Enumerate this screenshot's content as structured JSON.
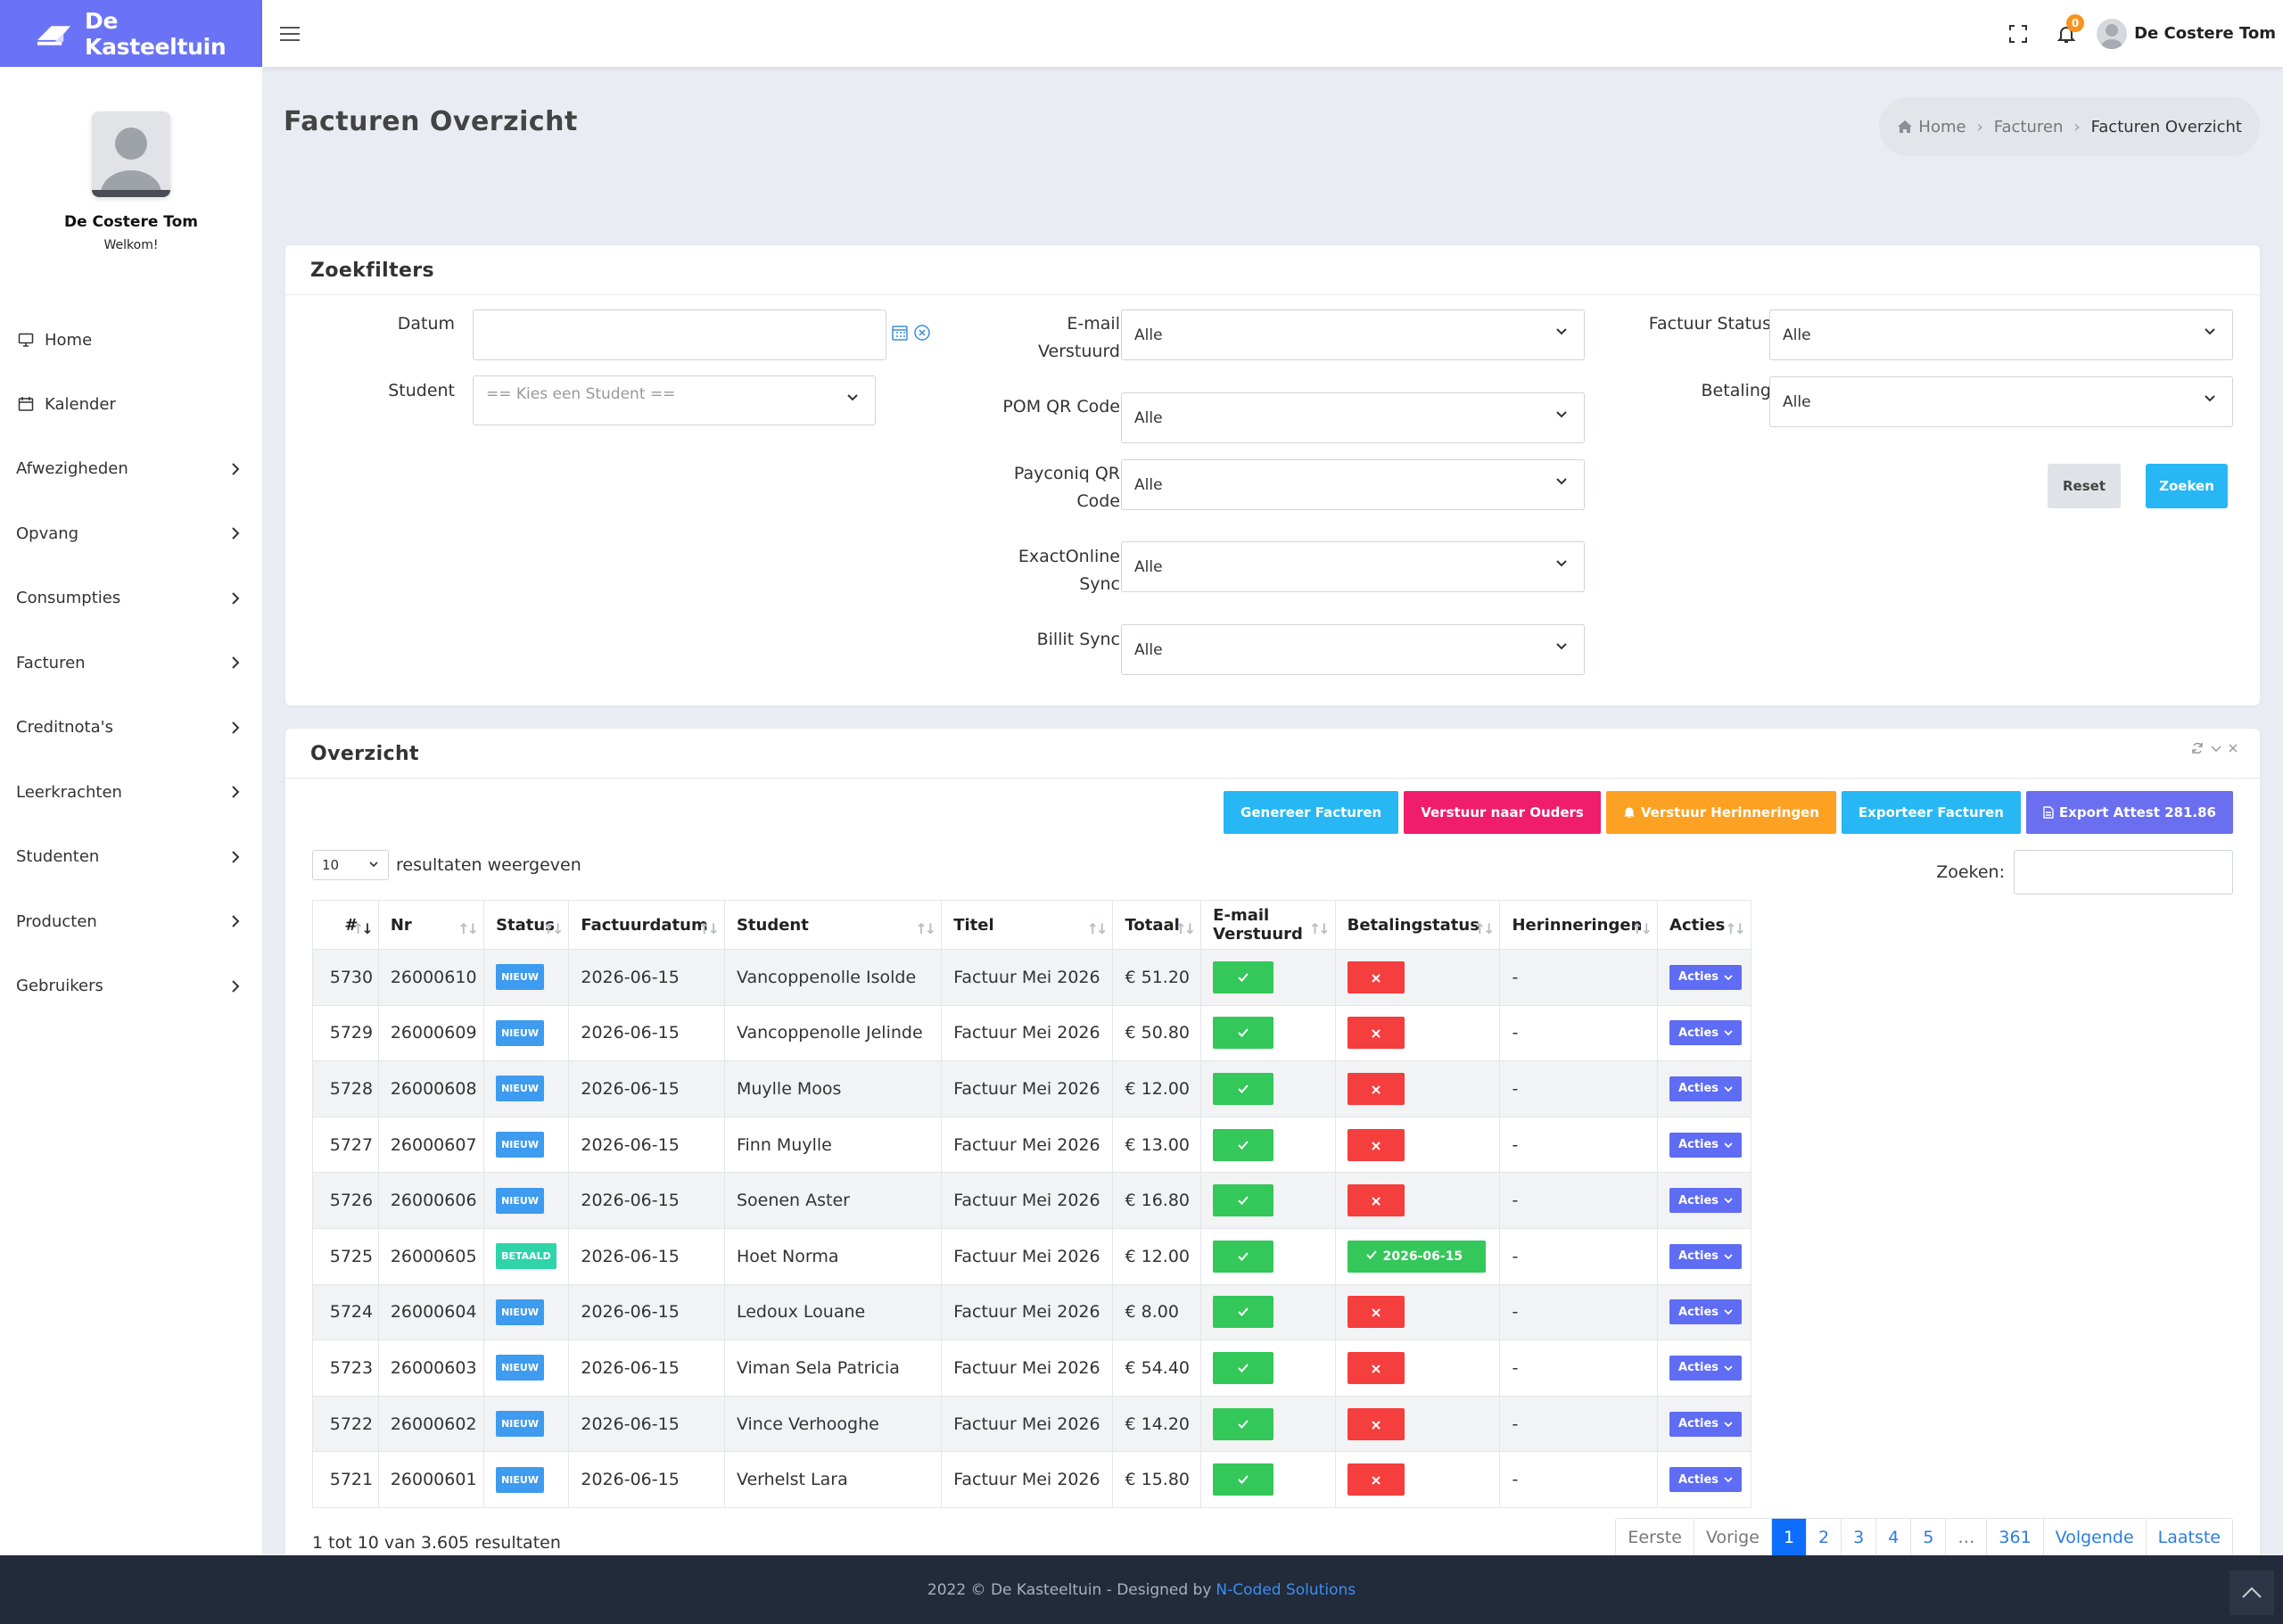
{
  "app": {
    "brand": "De Kasteeltuin",
    "notification_count": "0"
  },
  "user": {
    "name": "De Costere Tom",
    "welcome": "Welkom!"
  },
  "sidebar": {
    "items": [
      {
        "label": "Home",
        "icon": "monitor-icon",
        "has_submenu": false
      },
      {
        "label": "Kalender",
        "icon": "calendar-icon",
        "has_submenu": false
      },
      {
        "label": "Afwezigheden",
        "has_submenu": true
      },
      {
        "label": "Opvang",
        "has_submenu": true
      },
      {
        "label": "Consumpties",
        "has_submenu": true
      },
      {
        "label": "Facturen",
        "has_submenu": true
      },
      {
        "label": "Creditnota's",
        "has_submenu": true
      },
      {
        "label": "Leerkrachten",
        "has_submenu": true
      },
      {
        "label": "Studenten",
        "has_submenu": true
      },
      {
        "label": "Producten",
        "has_submenu": true
      },
      {
        "label": "Gebruikers",
        "has_submenu": true
      }
    ]
  },
  "page": {
    "title": "Facturen Overzicht",
    "breadcrumb": [
      "Home",
      "Facturen",
      "Facturen Overzicht"
    ]
  },
  "filters": {
    "title": "Zoekfilters",
    "datum": {
      "label": "Datum",
      "value": ""
    },
    "student": {
      "label": "Student",
      "placeholder": "== Kies een Student =="
    },
    "email_verstuurd": {
      "label_1": "E-mail",
      "label_2": "Verstuurd",
      "value": "Alle"
    },
    "pom_qr": {
      "label": "POM QR Code",
      "value": "Alle"
    },
    "payconiq": {
      "label_1": "Payconiq QR",
      "label_2": "Code",
      "value": "Alle"
    },
    "exactonline": {
      "label_1": "ExactOnline",
      "label_2": "Sync",
      "value": "Alle"
    },
    "billit": {
      "label": "Billit Sync",
      "value": "Alle"
    },
    "factuur_status": {
      "label": "Factuur Status",
      "value": "Alle"
    },
    "betaling": {
      "label": "Betaling",
      "value": "Alle"
    },
    "reset_label": "Reset",
    "search_label": "Zoeken"
  },
  "overview": {
    "title": "Overzicht",
    "actions": {
      "generate": "Genereer Facturen",
      "send_parents": "Verstuur naar Ouders",
      "send_reminders": "Verstuur Herinneringen",
      "export": "Exporteer Facturen",
      "export_attest": "Export Attest 281.86"
    },
    "length_value": "10",
    "length_suffix": "resultaten weergeven",
    "search_label": "Zoeken:",
    "columns": [
      "#",
      "Nr",
      "Status",
      "Factuurdatum",
      "Student",
      "Titel",
      "Totaal",
      "E-mail Verstuurd",
      "Betalingstatus",
      "Herinneringen",
      "Acties"
    ],
    "rows": [
      {
        "id": "5730",
        "nr": "26000610",
        "status": "NIEUW",
        "datum": "2026-06-15",
        "student": "Vancoppenolle Isolde",
        "titel": "Factuur Mei 2026",
        "totaal": "€ 51.20",
        "paid": false,
        "paid_date": "",
        "reminders": "-",
        "actions": "Acties"
      },
      {
        "id": "5729",
        "nr": "26000609",
        "status": "NIEUW",
        "datum": "2026-06-15",
        "student": "Vancoppenolle Jelinde",
        "titel": "Factuur Mei 2026",
        "totaal": "€ 50.80",
        "paid": false,
        "paid_date": "",
        "reminders": "-",
        "actions": "Acties"
      },
      {
        "id": "5728",
        "nr": "26000608",
        "status": "NIEUW",
        "datum": "2026-06-15",
        "student": "Muylle Moos",
        "titel": "Factuur Mei 2026",
        "totaal": "€ 12.00",
        "paid": false,
        "paid_date": "",
        "reminders": "-",
        "actions": "Acties"
      },
      {
        "id": "5727",
        "nr": "26000607",
        "status": "NIEUW",
        "datum": "2026-06-15",
        "student": "Finn Muylle",
        "titel": "Factuur Mei 2026",
        "totaal": "€ 13.00",
        "paid": false,
        "paid_date": "",
        "reminders": "-",
        "actions": "Acties"
      },
      {
        "id": "5726",
        "nr": "26000606",
        "status": "NIEUW",
        "datum": "2026-06-15",
        "student": "Soenen Aster",
        "titel": "Factuur Mei 2026",
        "totaal": "€ 16.80",
        "paid": false,
        "paid_date": "",
        "reminders": "-",
        "actions": "Acties"
      },
      {
        "id": "5725",
        "nr": "26000605",
        "status": "BETAALD",
        "datum": "2026-06-15",
        "student": "Hoet Norma",
        "titel": "Factuur Mei 2026",
        "totaal": "€ 12.00",
        "paid": true,
        "paid_date": "2026-06-15",
        "reminders": "-",
        "actions": "Acties"
      },
      {
        "id": "5724",
        "nr": "26000604",
        "status": "NIEUW",
        "datum": "2026-06-15",
        "student": "Ledoux Louane",
        "titel": "Factuur Mei 2026",
        "totaal": "€ 8.00",
        "paid": false,
        "paid_date": "",
        "reminders": "-",
        "actions": "Acties"
      },
      {
        "id": "5723",
        "nr": "26000603",
        "status": "NIEUW",
        "datum": "2026-06-15",
        "student": "Viman Sela Patricia",
        "titel": "Factuur Mei 2026",
        "totaal": "€ 54.40",
        "paid": false,
        "paid_date": "",
        "reminders": "-",
        "actions": "Acties"
      },
      {
        "id": "5722",
        "nr": "26000602",
        "status": "NIEUW",
        "datum": "2026-06-15",
        "student": "Vince Verhooghe",
        "titel": "Factuur Mei 2026",
        "totaal": "€ 14.20",
        "paid": false,
        "paid_date": "",
        "reminders": "-",
        "actions": "Acties"
      },
      {
        "id": "5721",
        "nr": "26000601",
        "status": "NIEUW",
        "datum": "2026-06-15",
        "student": "Verhelst Lara",
        "titel": "Factuur Mei 2026",
        "totaal": "€ 15.80",
        "paid": false,
        "paid_date": "",
        "reminders": "-",
        "actions": "Acties"
      }
    ],
    "info": "1 tot 10 van 3.605 resultaten",
    "pagination": [
      "Eerste",
      "Vorige",
      "1",
      "2",
      "3",
      "4",
      "5",
      "…",
      "361",
      "Volgende",
      "Laatste"
    ],
    "active_page": "1"
  },
  "footer": {
    "text": "2022 © De Kasteeltuin - Designed by",
    "link": "N-Coded Solutions"
  },
  "colors": {
    "brand": "#6a73f5",
    "primary_button": "#27b7f4",
    "pink": "#ef1d6b",
    "orange": "#fca121",
    "export": "#27b7f4",
    "attest": "#6a6ff0",
    "success": "#34c75a",
    "danger": "#f53e3e",
    "status_new": "#3d9bf0",
    "status_paid": "#2fd4a8",
    "acties": "#5f6cf4"
  }
}
